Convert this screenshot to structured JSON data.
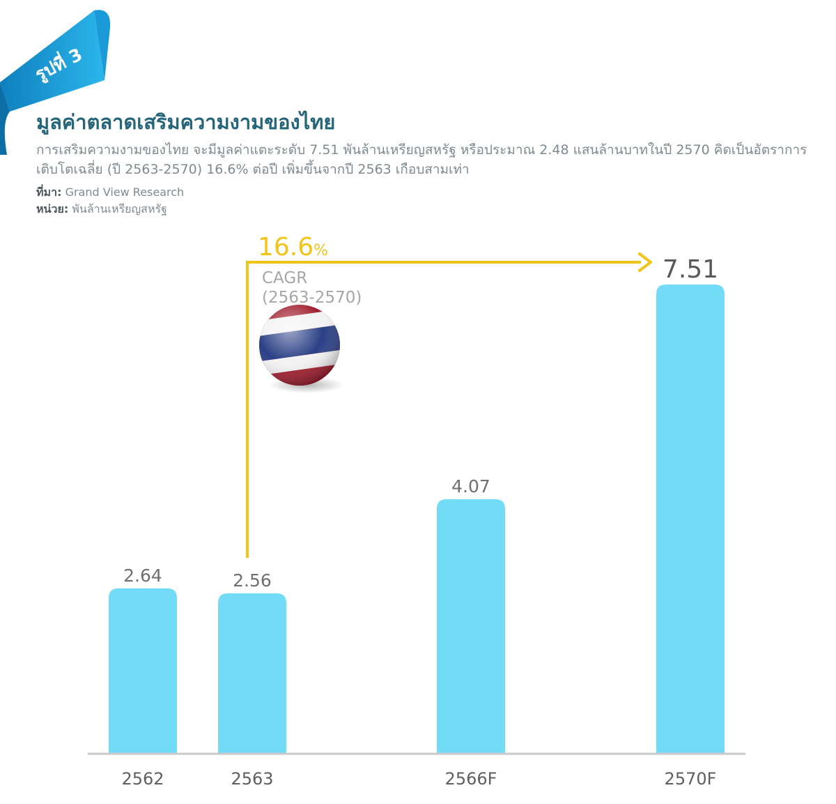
{
  "badge": {
    "label": "รูปที่ 3"
  },
  "header": {
    "title": "มูลค่าตลาดเสริมความงามของไทย",
    "description": "การเสริมความงามของไทย จะมีมูลค่าแตะระดับ 7.51 พันล้านเหรียญสหรัฐ หรือประมาณ 2.48 แสนล้านบาทในปี 2570 คิดเป็นอัตราการเติบโตเฉลี่ย (ปี 2563-2570) 16.6% ต่อปี เพิ่มขึ้นจากปี 2563 เกือบสามเท่า",
    "source_label": "ที่มา:",
    "source": "Grand View Research",
    "unit_label": "หน่วย:",
    "unit": "พันล้านเหรียญสหรัฐ"
  },
  "annotation": {
    "cagr_value": "16.6",
    "cagr_unit": "%",
    "cagr_label": "CAGR",
    "cagr_period": "(2563-2570)",
    "flag_icon": "thailand-flag-ball-icon"
  },
  "colors": {
    "bar": "#72dcf6",
    "arrow": "#f0c419",
    "title": "#24657a",
    "badge": "#1ba3dc"
  },
  "chart_data": {
    "type": "bar",
    "title": "มูลค่าตลาดเสริมความงามของไทย",
    "ylabel": "พันล้านเหรียญสหรัฐ",
    "categories": [
      "2562",
      "2563",
      "2566F",
      "2570F"
    ],
    "values": [
      2.64,
      2.56,
      4.07,
      7.51
    ],
    "value_labels": [
      "2.64",
      "2.56",
      "4.07",
      "7.51"
    ],
    "ylim": [
      0,
      7.51
    ],
    "grid": false,
    "legend": "none"
  }
}
